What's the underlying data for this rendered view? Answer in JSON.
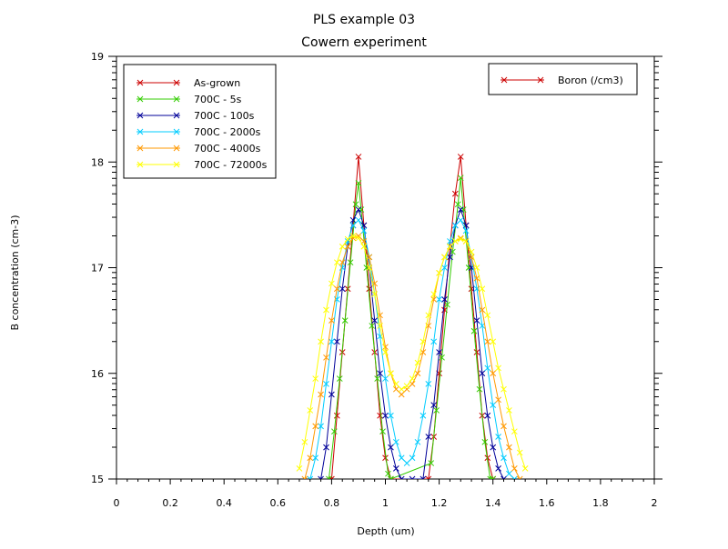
{
  "chart_data": {
    "type": "line",
    "title": "PLS example 03",
    "subtitle": "Cowern experiment",
    "xlabel": "Depth (um)",
    "ylabel": "B concentration (cm-3)",
    "xlim": [
      0,
      2
    ],
    "ylim": [
      15,
      19
    ],
    "x_ticks": [
      "0",
      "0.2",
      "0.4",
      "0.6",
      "0.8",
      "1",
      "1.2",
      "1.4",
      "1.6",
      "1.8",
      "2"
    ],
    "y_ticks": [
      "15",
      "16",
      "17",
      "18",
      "19"
    ],
    "grid": false,
    "legend_placement": "top-left",
    "legend2": {
      "label": "Boron (/cm3)",
      "color": "#cc0000",
      "placement": "top-right"
    },
    "series": [
      {
        "name": "As-grown",
        "color": "#cc0000",
        "x": [
          0.8,
          0.82,
          0.84,
          0.86,
          0.88,
          0.9,
          0.92,
          0.94,
          0.96,
          0.98,
          1.0,
          1.02,
          1.16,
          1.18,
          1.2,
          1.22,
          1.24,
          1.26,
          1.28,
          1.3,
          1.32,
          1.34,
          1.36,
          1.38,
          1.4
        ],
        "y": [
          15.0,
          15.6,
          16.2,
          16.8,
          17.4,
          18.05,
          17.4,
          16.8,
          16.2,
          15.6,
          15.2,
          15.0,
          15.0,
          15.4,
          16.0,
          16.6,
          17.2,
          17.7,
          18.05,
          17.4,
          16.8,
          16.2,
          15.6,
          15.2,
          15.0
        ]
      },
      {
        "name": "700C - 5s",
        "color": "#33cc00",
        "x": [
          0.79,
          0.81,
          0.83,
          0.85,
          0.87,
          0.89,
          0.9,
          0.91,
          0.93,
          0.95,
          0.97,
          0.99,
          1.01,
          1.02,
          1.17,
          1.19,
          1.21,
          1.23,
          1.25,
          1.27,
          1.28,
          1.29,
          1.31,
          1.33,
          1.35,
          1.37,
          1.39,
          1.4
        ],
        "y": [
          15.0,
          15.45,
          15.95,
          16.5,
          17.05,
          17.6,
          17.8,
          17.55,
          17.0,
          16.45,
          15.95,
          15.45,
          15.05,
          15.0,
          15.15,
          15.65,
          16.15,
          16.65,
          17.15,
          17.6,
          17.85,
          17.55,
          17.0,
          16.4,
          15.85,
          15.35,
          15.0,
          15.0
        ]
      },
      {
        "name": "700C - 100s",
        "color": "#000099",
        "x": [
          0.76,
          0.78,
          0.8,
          0.82,
          0.84,
          0.86,
          0.88,
          0.9,
          0.92,
          0.94,
          0.96,
          0.98,
          1.0,
          1.02,
          1.04,
          1.06,
          1.1,
          1.14,
          1.16,
          1.18,
          1.2,
          1.22,
          1.24,
          1.26,
          1.28,
          1.3,
          1.32,
          1.34,
          1.36,
          1.38,
          1.4,
          1.42,
          1.44
        ],
        "y": [
          15.0,
          15.3,
          15.8,
          16.3,
          16.8,
          17.2,
          17.45,
          17.55,
          17.4,
          17.0,
          16.5,
          16.0,
          15.6,
          15.3,
          15.1,
          15.0,
          15.0,
          15.0,
          15.4,
          15.7,
          16.2,
          16.7,
          17.1,
          17.4,
          17.55,
          17.4,
          17.0,
          16.5,
          16.0,
          15.6,
          15.3,
          15.1,
          15.0
        ]
      },
      {
        "name": "700C - 2000s",
        "color": "#00ccff",
        "x": [
          0.72,
          0.74,
          0.76,
          0.78,
          0.8,
          0.82,
          0.84,
          0.86,
          0.88,
          0.9,
          0.92,
          0.94,
          0.96,
          0.98,
          1.0,
          1.02,
          1.04,
          1.06,
          1.08,
          1.1,
          1.12,
          1.14,
          1.16,
          1.18,
          1.2,
          1.22,
          1.24,
          1.26,
          1.28,
          1.3,
          1.32,
          1.34,
          1.36,
          1.38,
          1.4,
          1.42,
          1.44,
          1.46,
          1.48
        ],
        "y": [
          15.0,
          15.2,
          15.5,
          15.9,
          16.3,
          16.7,
          17.0,
          17.25,
          17.4,
          17.45,
          17.35,
          17.1,
          16.75,
          16.35,
          15.95,
          15.6,
          15.35,
          15.2,
          15.15,
          15.2,
          15.35,
          15.6,
          15.9,
          16.3,
          16.7,
          17.0,
          17.25,
          17.4,
          17.45,
          17.35,
          17.1,
          16.8,
          16.45,
          16.05,
          15.7,
          15.4,
          15.2,
          15.05,
          15.0
        ]
      },
      {
        "name": "700C - 4000s",
        "color": "#ff9900",
        "x": [
          0.7,
          0.72,
          0.74,
          0.76,
          0.78,
          0.8,
          0.82,
          0.84,
          0.86,
          0.88,
          0.9,
          0.92,
          0.94,
          0.96,
          0.98,
          1.0,
          1.02,
          1.04,
          1.06,
          1.08,
          1.1,
          1.12,
          1.14,
          1.16,
          1.18,
          1.2,
          1.22,
          1.24,
          1.26,
          1.28,
          1.3,
          1.32,
          1.34,
          1.36,
          1.38,
          1.4,
          1.42,
          1.44,
          1.46,
          1.48,
          1.5
        ],
        "y": [
          15.0,
          15.2,
          15.5,
          15.8,
          16.15,
          16.5,
          16.8,
          17.05,
          17.2,
          17.28,
          17.3,
          17.25,
          17.1,
          16.85,
          16.55,
          16.25,
          16.0,
          15.85,
          15.8,
          15.85,
          15.9,
          16.0,
          16.2,
          16.45,
          16.7,
          16.95,
          17.1,
          17.2,
          17.25,
          17.28,
          17.25,
          17.1,
          16.9,
          16.6,
          16.3,
          16.0,
          15.75,
          15.5,
          15.3,
          15.1,
          15.0
        ]
      },
      {
        "name": "700C - 72000s",
        "color": "#ffff00",
        "x": [
          0.68,
          0.7,
          0.72,
          0.74,
          0.76,
          0.78,
          0.8,
          0.82,
          0.84,
          0.86,
          0.88,
          0.9,
          0.92,
          0.94,
          0.96,
          0.98,
          1.0,
          1.02,
          1.04,
          1.06,
          1.08,
          1.1,
          1.12,
          1.14,
          1.16,
          1.18,
          1.2,
          1.22,
          1.24,
          1.26,
          1.28,
          1.3,
          1.32,
          1.34,
          1.36,
          1.38,
          1.4,
          1.42,
          1.44,
          1.46,
          1.48,
          1.5,
          1.52
        ],
        "y": [
          15.1,
          15.35,
          15.65,
          15.95,
          16.3,
          16.6,
          16.85,
          17.05,
          17.2,
          17.27,
          17.3,
          17.28,
          17.2,
          17.0,
          16.75,
          16.45,
          16.2,
          16.0,
          15.9,
          15.85,
          15.88,
          15.95,
          16.1,
          16.3,
          16.55,
          16.75,
          16.95,
          17.1,
          17.2,
          17.25,
          17.27,
          17.25,
          17.15,
          17.0,
          16.8,
          16.55,
          16.3,
          16.05,
          15.85,
          15.65,
          15.45,
          15.25,
          15.1
        ]
      }
    ]
  }
}
